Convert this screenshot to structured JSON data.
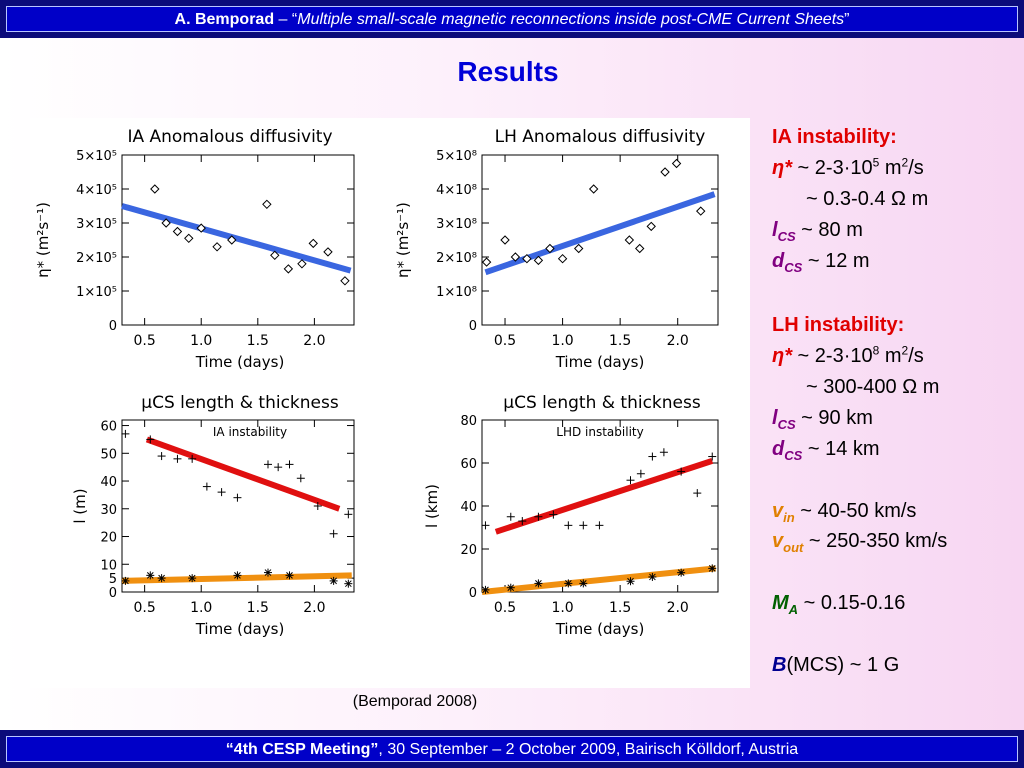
{
  "header": {
    "author": "A. Bemporad",
    "sep": " – “",
    "title": "Multiple small-scale magnetic reconnections inside post-CME Current Sheets",
    "close": "”"
  },
  "page_title": "Results",
  "caption": "(Bemporad 2008)",
  "footer": {
    "meeting": "“4th CESP Meeting”",
    "rest": ", 30 September – 2 October 2009, Bairisch Kölldorf, Austria"
  },
  "side": {
    "ia_heading": "IA instability:",
    "eta": "η*",
    "ia_eta_pre": " ~ 2-3·10",
    "ia_eta_exp": "5",
    "ia_eta_unit": " m",
    "ia_eta_unit_exp": "2",
    "ia_eta_unit_end": "/s",
    "ia_res": "~ 0.3-0.4 Ω m",
    "l_sym": "l",
    "cs_sub": "CS",
    "ia_l": "  ~ 80 m",
    "d_sym": "d",
    "ia_d": " ~ 12 m",
    "lh_heading": "LH instability:",
    "lh_eta_pre": " ~ 2-3·10",
    "lh_eta_exp": "8",
    "lh_res": "~ 300-400 Ω m",
    "lh_l": "  ~ 90 km",
    "lh_d": " ~ 14 km",
    "v_sym": "v",
    "in_sub": "in",
    "vin": "  ~ 40-50 km/s",
    "out_sub": "out",
    "vout": " ~ 250-350 km/s",
    "m_sym": "M",
    "a_sub": "A",
    "ma": " ~ 0.15-0.16",
    "b_sym": "B",
    "b_val": "(MCS) ~ 1 G"
  },
  "colors": {
    "fit_blue": "#3a66e0",
    "fit_red": "#e01010",
    "fit_orange": "#f09010",
    "header_bg": "#0000c8"
  },
  "chart_data": [
    {
      "type": "scatter",
      "title": "IA Anomalous diffusivity",
      "xlabel": "Time (days)",
      "ylabel": "η* (m²s⁻¹)",
      "xlim": [
        0.3,
        2.35
      ],
      "ylim": [
        0,
        500000
      ],
      "xticks": [
        {
          "v": 0.5,
          "label": "0.5"
        },
        {
          "v": 1.0,
          "label": "1.0"
        },
        {
          "v": 1.5,
          "label": "1.5"
        },
        {
          "v": 2.0,
          "label": "2.0"
        }
      ],
      "yticks": [
        {
          "v": 0,
          "label": "0"
        },
        {
          "v": 100000,
          "label": "1×10⁵"
        },
        {
          "v": 200000,
          "label": "2×10⁵"
        },
        {
          "v": 300000,
          "label": "3×10⁵"
        },
        {
          "v": 400000,
          "label": "4×10⁵"
        },
        {
          "v": 500000,
          "label": "5×10⁵"
        }
      ],
      "marker": "diamond",
      "points": [
        [
          0.59,
          400000
        ],
        [
          0.69,
          300000
        ],
        [
          0.79,
          275000
        ],
        [
          0.89,
          255000
        ],
        [
          1.0,
          285000
        ],
        [
          1.14,
          230000
        ],
        [
          1.27,
          250000
        ],
        [
          1.58,
          355000
        ],
        [
          1.65,
          205000
        ],
        [
          1.77,
          165000
        ],
        [
          1.89,
          180000
        ],
        [
          1.99,
          240000
        ],
        [
          2.12,
          215000
        ],
        [
          2.27,
          130000
        ]
      ],
      "fits": [
        {
          "color": "fit_blue",
          "x": [
            0.3,
            2.32
          ],
          "y": [
            350000,
            160000
          ]
        }
      ]
    },
    {
      "type": "scatter",
      "title": "LH Anomalous diffusivity",
      "xlabel": "Time (days)",
      "ylabel": "η* (m²s⁻¹)",
      "xlim": [
        0.3,
        2.35
      ],
      "ylim": [
        0,
        500000000
      ],
      "xticks": [
        {
          "v": 0.5,
          "label": "0.5"
        },
        {
          "v": 1.0,
          "label": "1.0"
        },
        {
          "v": 1.5,
          "label": "1.5"
        },
        {
          "v": 2.0,
          "label": "2.0"
        }
      ],
      "yticks": [
        {
          "v": 0,
          "label": "0"
        },
        {
          "v": 100000000,
          "label": "1×10⁸"
        },
        {
          "v": 200000000,
          "label": "2×10⁸"
        },
        {
          "v": 300000000,
          "label": "3×10⁸"
        },
        {
          "v": 400000000,
          "label": "4×10⁸"
        },
        {
          "v": 500000000,
          "label": "5×10⁸"
        }
      ],
      "marker": "diamond",
      "points": [
        [
          0.34,
          185000000
        ],
        [
          0.5,
          250000000
        ],
        [
          0.59,
          200000000
        ],
        [
          0.69,
          195000000
        ],
        [
          0.79,
          190000000
        ],
        [
          0.89,
          225000000
        ],
        [
          1.0,
          195000000
        ],
        [
          1.14,
          225000000
        ],
        [
          1.27,
          400000000
        ],
        [
          1.58,
          250000000
        ],
        [
          1.67,
          225000000
        ],
        [
          1.77,
          290000000
        ],
        [
          1.89,
          450000000
        ],
        [
          1.99,
          475000000
        ],
        [
          2.2,
          335000000
        ]
      ],
      "fits": [
        {
          "color": "fit_blue",
          "x": [
            0.33,
            2.32
          ],
          "y": [
            155000000,
            385000000
          ]
        }
      ]
    },
    {
      "type": "scatter",
      "title": "μCS length & thickness",
      "annotation": "IA instability",
      "xlabel": "Time (days)",
      "ylabel": "l (m)",
      "xlim": [
        0.3,
        2.35
      ],
      "ylim": [
        0,
        62
      ],
      "xticks": [
        {
          "v": 0.5,
          "label": "0.5"
        },
        {
          "v": 1.0,
          "label": "1.0"
        },
        {
          "v": 1.5,
          "label": "1.5"
        },
        {
          "v": 2.0,
          "label": "2.0"
        }
      ],
      "yticks": [
        {
          "v": 0,
          "label": "0"
        },
        {
          "v": 5,
          "label": "5"
        },
        {
          "v": 10,
          "label": "10"
        },
        {
          "v": 20,
          "label": "20"
        },
        {
          "v": 30,
          "label": "30"
        },
        {
          "v": 40,
          "label": "40"
        },
        {
          "v": 50,
          "label": "50"
        },
        {
          "v": 60,
          "label": "60"
        }
      ],
      "marker": "plus",
      "points": [
        [
          0.33,
          57
        ],
        [
          0.55,
          55
        ],
        [
          0.65,
          49
        ],
        [
          0.79,
          48
        ],
        [
          0.92,
          48
        ],
        [
          1.05,
          38
        ],
        [
          1.18,
          36
        ],
        [
          1.32,
          34
        ],
        [
          1.59,
          46
        ],
        [
          1.68,
          45
        ],
        [
          1.78,
          46
        ],
        [
          1.88,
          41
        ],
        [
          2.03,
          31
        ],
        [
          2.17,
          21
        ],
        [
          2.3,
          28
        ]
      ],
      "stars": [
        [
          0.33,
          4
        ],
        [
          0.55,
          6
        ],
        [
          0.65,
          5
        ],
        [
          0.92,
          5
        ],
        [
          1.32,
          6
        ],
        [
          1.59,
          7
        ],
        [
          1.78,
          6
        ],
        [
          2.17,
          4
        ],
        [
          2.3,
          3
        ]
      ],
      "fits": [
        {
          "color": "fit_red",
          "x": [
            0.52,
            2.22
          ],
          "y": [
            55,
            30
          ]
        },
        {
          "color": "fit_orange",
          "x": [
            0.3,
            2.33
          ],
          "y": [
            4,
            6
          ]
        }
      ]
    },
    {
      "type": "scatter",
      "title": "μCS length & thickness",
      "annotation": "LHD instability",
      "xlabel": "Time (days)",
      "ylabel": "l (km)",
      "xlim": [
        0.3,
        2.35
      ],
      "ylim": [
        0,
        80
      ],
      "xticks": [
        {
          "v": 0.5,
          "label": "0.5"
        },
        {
          "v": 1.0,
          "label": "1.0"
        },
        {
          "v": 1.5,
          "label": "1.5"
        },
        {
          "v": 2.0,
          "label": "2.0"
        }
      ],
      "yticks": [
        {
          "v": 0,
          "label": "0"
        },
        {
          "v": 20,
          "label": "20"
        },
        {
          "v": 40,
          "label": "40"
        },
        {
          "v": 60,
          "label": "60"
        },
        {
          "v": 80,
          "label": "80"
        }
      ],
      "marker": "plus",
      "points": [
        [
          0.33,
          31
        ],
        [
          0.55,
          35
        ],
        [
          0.65,
          33
        ],
        [
          0.79,
          35
        ],
        [
          0.92,
          36
        ],
        [
          1.05,
          31
        ],
        [
          1.18,
          31
        ],
        [
          1.32,
          31
        ],
        [
          1.59,
          52
        ],
        [
          1.68,
          55
        ],
        [
          1.78,
          63
        ],
        [
          1.88,
          65
        ],
        [
          2.03,
          56
        ],
        [
          2.17,
          46
        ],
        [
          2.3,
          63
        ]
      ],
      "stars": [
        [
          0.33,
          1
        ],
        [
          0.55,
          2
        ],
        [
          0.79,
          4
        ],
        [
          1.05,
          4
        ],
        [
          1.18,
          4
        ],
        [
          1.59,
          5
        ],
        [
          1.78,
          7
        ],
        [
          2.03,
          9
        ],
        [
          2.3,
          11
        ]
      ],
      "fits": [
        {
          "color": "fit_red",
          "x": [
            0.42,
            2.3
          ],
          "y": [
            28,
            61
          ]
        },
        {
          "color": "fit_orange",
          "x": [
            0.3,
            2.33
          ],
          "y": [
            0,
            11
          ]
        }
      ]
    }
  ]
}
